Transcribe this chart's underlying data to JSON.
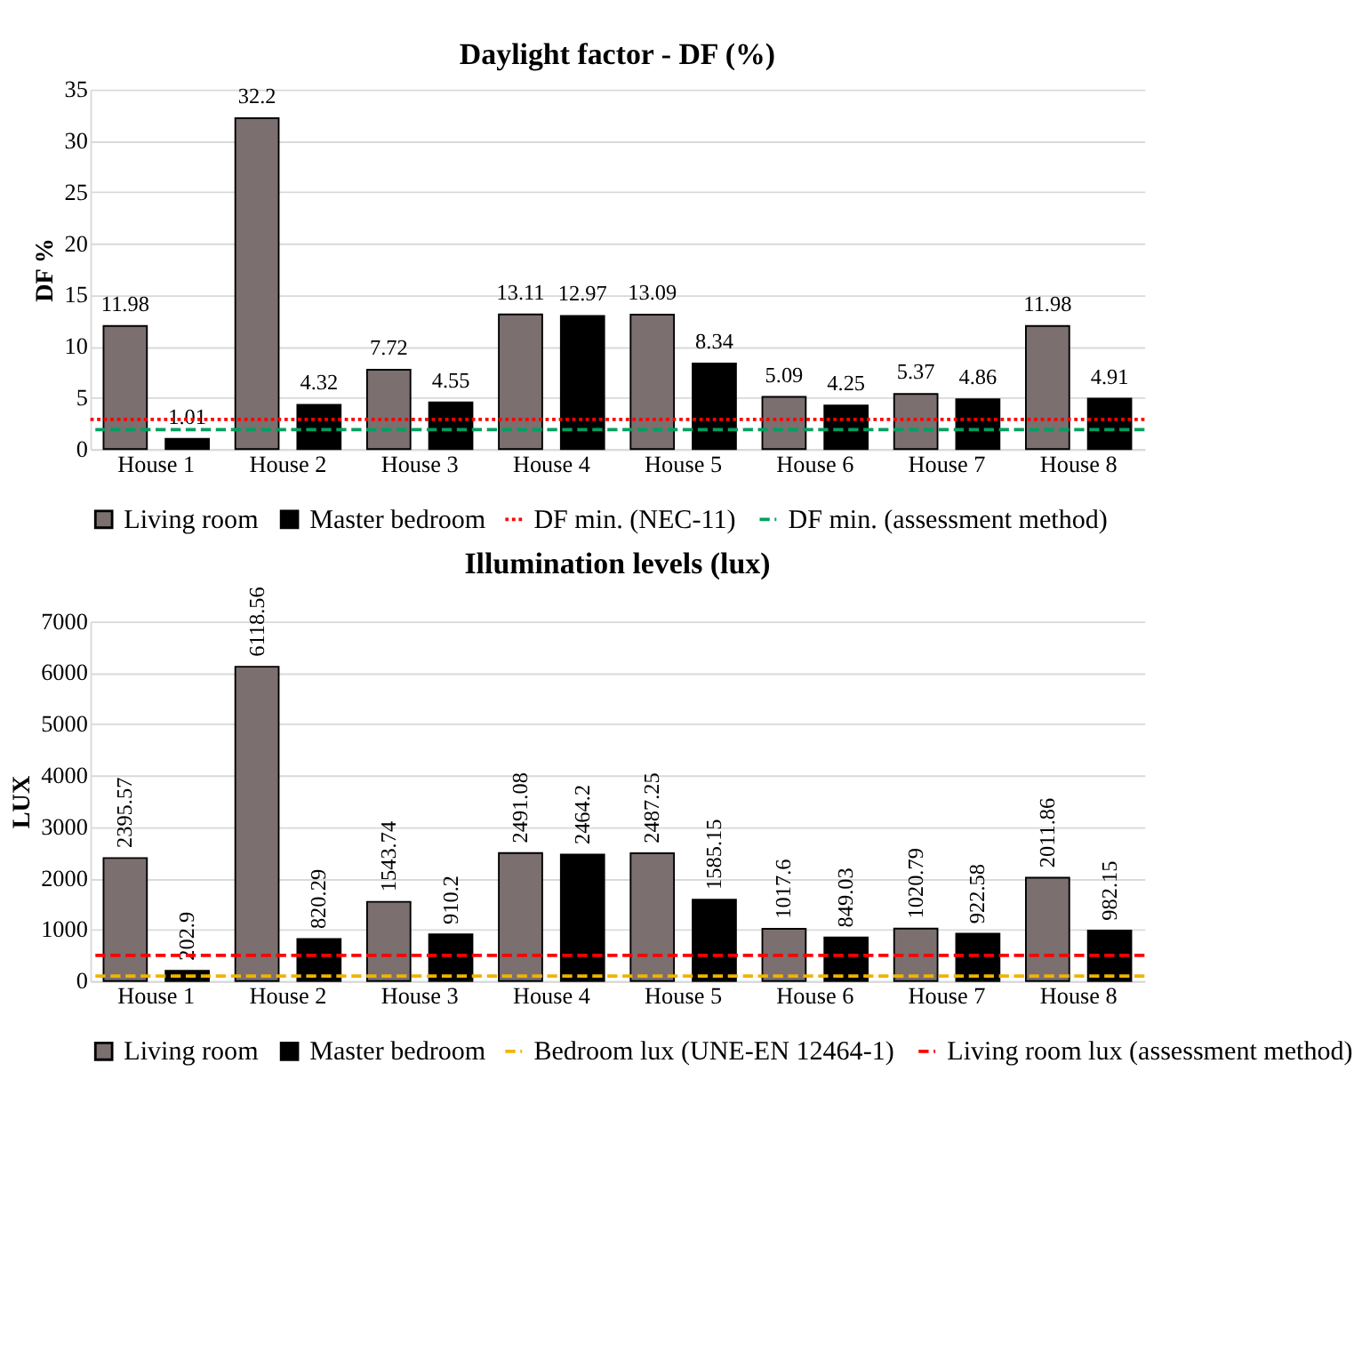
{
  "chart_data": [
    {
      "type": "bar",
      "title": "Daylight factor - DF  (%)",
      "ylabel": "DF %",
      "categories": [
        "House 1",
        "House 2",
        "House 3",
        "House 4",
        "House 5",
        "House 6",
        "House 7",
        "House 8"
      ],
      "series": [
        {
          "name": "Living room",
          "color": "#7b6f6f",
          "values": [
            11.98,
            32.2,
            7.72,
            13.11,
            13.09,
            5.09,
            5.37,
            11.98
          ]
        },
        {
          "name": "Master bedroom",
          "color": "#000000",
          "values": [
            1.01,
            4.32,
            4.55,
            12.97,
            8.34,
            4.25,
            4.86,
            4.91
          ]
        }
      ],
      "ylim": [
        0,
        35
      ],
      "yticks": [
        0,
        5,
        10,
        15,
        20,
        25,
        30,
        35
      ],
      "grid": "y",
      "data_labels": true,
      "legend": "bottom",
      "ref_lines": [
        {
          "axis": "y",
          "value": 2.9,
          "label": "DF min. (NEC-11)",
          "color": "#ff0000",
          "line_style": "dotted"
        },
        {
          "axis": "y",
          "value": 1.9,
          "label": "DF min. (assessment method)",
          "color": "#00a060",
          "line_style": "dashed"
        }
      ]
    },
    {
      "type": "bar",
      "title": "Illumination levels (lux)",
      "ylabel": "LUX",
      "categories": [
        "House 1",
        "House 2",
        "House 3",
        "House 4",
        "House 5",
        "House 6",
        "House 7",
        "House 8"
      ],
      "series": [
        {
          "name": "Living room",
          "color": "#7b6f6f",
          "values": [
            2395.57,
            6118.56,
            1543.74,
            2491.08,
            2487.25,
            1017.6,
            1020.79,
            2011.86
          ]
        },
        {
          "name": "Master bedroom",
          "color": "#000000",
          "values": [
            202.9,
            820.29,
            910.2,
            2464.2,
            1585.15,
            849.03,
            922.58,
            982.15
          ]
        }
      ],
      "ylim": [
        0,
        7000
      ],
      "yticks": [
        0,
        1000,
        2000,
        3000,
        4000,
        5000,
        6000,
        7000
      ],
      "grid": "y",
      "data_labels": true,
      "legend": "bottom",
      "ref_lines": [
        {
          "axis": "y",
          "value": 100,
          "label": "Bedroom lux (UNE-EN 12464-1)",
          "color": "#f0b400",
          "line_style": "dashed"
        },
        {
          "axis": "y",
          "value": 500,
          "label": "Living room lux (assessment method)",
          "color": "#ff0000",
          "line_style": "dashed"
        }
      ]
    }
  ]
}
